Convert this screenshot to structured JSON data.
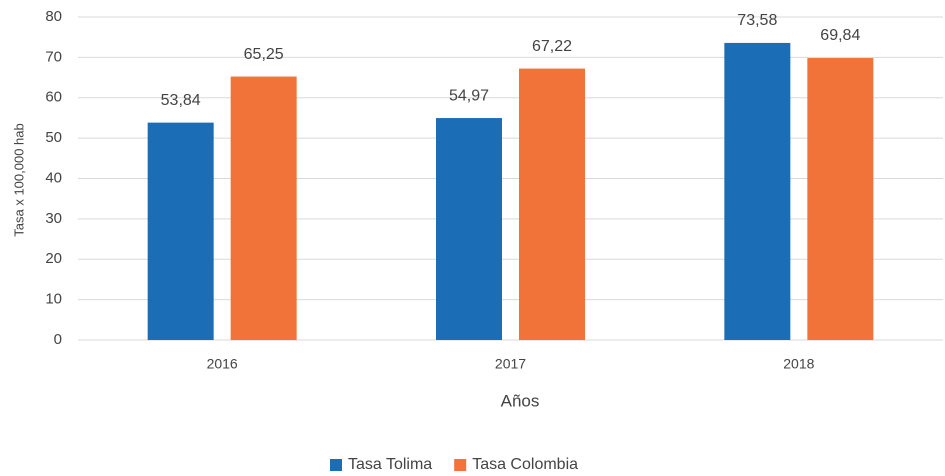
{
  "chart_data": {
    "type": "bar",
    "y_label": "Tasa x 100,000 hab",
    "x_label": "Años",
    "categories": [
      "2016",
      "2017",
      "2018"
    ],
    "series": [
      {
        "name": "Tasa Tolima",
        "color": "#1b6db6",
        "values": [
          53.84,
          54.97,
          73.58
        ],
        "value_labels": [
          "53,84",
          "54,97",
          "73,58"
        ]
      },
      {
        "name": "Tasa Colombia",
        "color": "#f1733a",
        "values": [
          65.25,
          67.22,
          69.84
        ],
        "value_labels": [
          "65,25",
          "67,22",
          "69,84"
        ]
      }
    ],
    "ylim": [
      0,
      80
    ],
    "yticks": [
      0,
      10,
      20,
      30,
      40,
      50,
      60,
      70,
      80
    ],
    "grid": true,
    "legend": "bottom"
  }
}
